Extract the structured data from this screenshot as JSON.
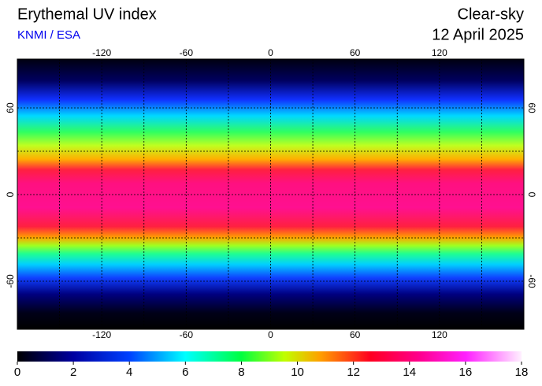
{
  "header": {
    "title": "Erythemal UV index",
    "subtitle": "KNMI / ESA",
    "mode": "Clear-sky",
    "date": "12 April 2025"
  },
  "map": {
    "xlim": [
      -180,
      180
    ],
    "ylim": [
      -90,
      90
    ],
    "xticks": [
      -120,
      -60,
      0,
      60,
      120
    ],
    "yticks": [
      60,
      0,
      -60
    ]
  },
  "colorbar": {
    "lim": [
      0,
      18
    ],
    "ticks": [
      0,
      2,
      4,
      6,
      8,
      10,
      12,
      14,
      16,
      18
    ]
  }
}
